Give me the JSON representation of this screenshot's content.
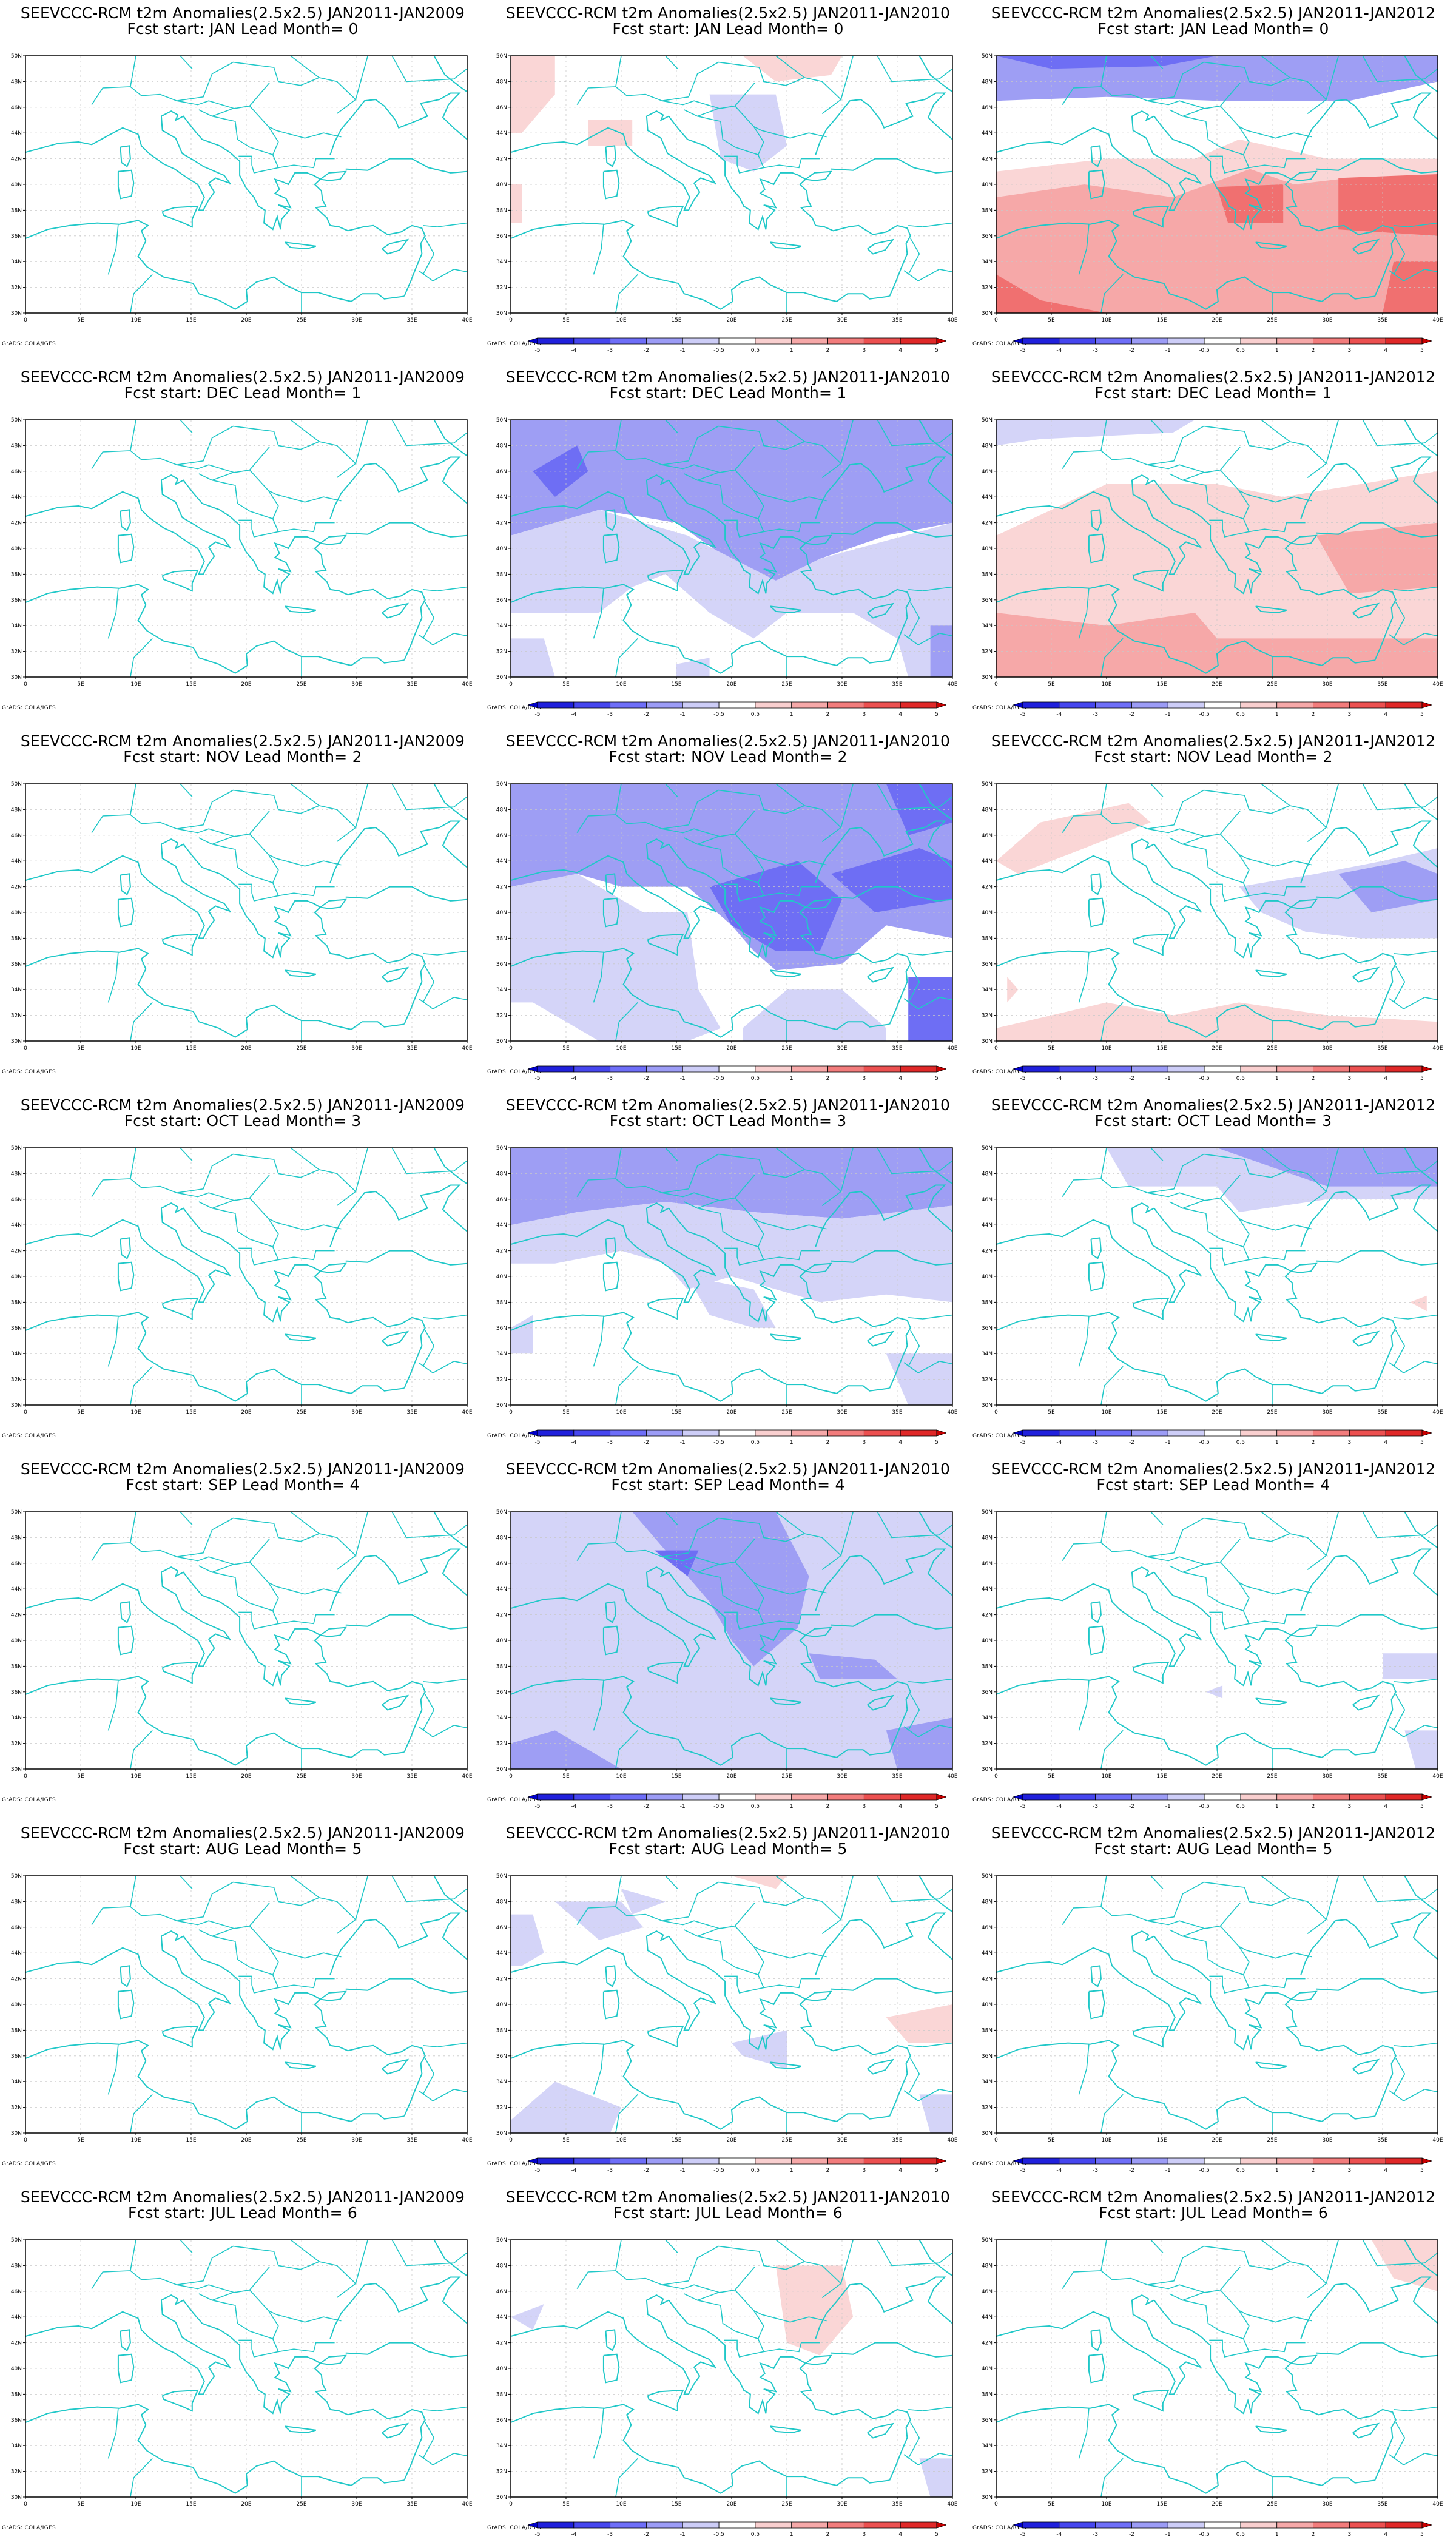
{
  "footer": "GrADS: COLA/IGES",
  "title_prefix": "SEEVCCC-RCM t2m Anomalies(2.5x2.5)",
  "row_titles": [
    {
      "fcst_start": "JAN",
      "lead_month": 0
    },
    {
      "fcst_start": "DEC",
      "lead_month": 1
    },
    {
      "fcst_start": "NOV",
      "lead_month": 2
    },
    {
      "fcst_start": "OCT",
      "lead_month": 3
    },
    {
      "fcst_start": "SEP",
      "lead_month": 4
    },
    {
      "fcst_start": "AUG",
      "lead_month": 5
    },
    {
      "fcst_start": "JUL",
      "lead_month": 6
    }
  ],
  "column_periods": [
    "JAN2011-JAN2009",
    "JAN2011-JAN2010",
    "JAN2011-JAN2012"
  ],
  "panels": [
    [
      {
        "title1": "SEEVCCC-RCM t2m Anomalies(2.5x2.5) JAN2011-JAN2009",
        "title2": "Fcst start: JAN  Lead Month= 0",
        "colorbar": false
      },
      {
        "title1": "SEEVCCC-RCM t2m Anomalies(2.5x2.5) JAN2011-JAN2010",
        "title2": "Fcst start: JAN  Lead Month= 0",
        "colorbar": true
      },
      {
        "title1": "SEEVCCC-RCM t2m Anomalies(2.5x2.5) JAN2011-JAN2012",
        "title2": "Fcst start: JAN  Lead Month= 0",
        "colorbar": true
      }
    ],
    [
      {
        "title1": "SEEVCCC-RCM t2m Anomalies(2.5x2.5) JAN2011-JAN2009",
        "title2": "Fcst start: DEC  Lead Month= 1",
        "colorbar": false
      },
      {
        "title1": "SEEVCCC-RCM t2m Anomalies(2.5x2.5) JAN2011-JAN2010",
        "title2": "Fcst start: DEC  Lead Month= 1",
        "colorbar": true
      },
      {
        "title1": "SEEVCCC-RCM t2m Anomalies(2.5x2.5) JAN2011-JAN2012",
        "title2": "Fcst start: DEC  Lead Month= 1",
        "colorbar": true
      }
    ],
    [
      {
        "title1": "SEEVCCC-RCM t2m Anomalies(2.5x2.5) JAN2011-JAN2009",
        "title2": "Fcst start: NOV  Lead Month= 2",
        "colorbar": false
      },
      {
        "title1": "SEEVCCC-RCM t2m Anomalies(2.5x2.5) JAN2011-JAN2010",
        "title2": "Fcst start: NOV  Lead Month= 2",
        "colorbar": true
      },
      {
        "title1": "SEEVCCC-RCM t2m Anomalies(2.5x2.5) JAN2011-JAN2012",
        "title2": "Fcst start: NOV  Lead Month= 2",
        "colorbar": true
      }
    ],
    [
      {
        "title1": "SEEVCCC-RCM t2m Anomalies(2.5x2.5) JAN2011-JAN2009",
        "title2": "Fcst start: OCT  Lead Month= 3",
        "colorbar": false
      },
      {
        "title1": "SEEVCCC-RCM t2m Anomalies(2.5x2.5) JAN2011-JAN2010",
        "title2": "Fcst start: OCT  Lead Month= 3",
        "colorbar": true
      },
      {
        "title1": "SEEVCCC-RCM t2m Anomalies(2.5x2.5) JAN2011-JAN2012",
        "title2": "Fcst start: OCT  Lead Month= 3",
        "colorbar": true
      }
    ],
    [
      {
        "title1": "SEEVCCC-RCM t2m Anomalies(2.5x2.5) JAN2011-JAN2009",
        "title2": "Fcst start: SEP  Lead Month= 4",
        "colorbar": false
      },
      {
        "title1": "SEEVCCC-RCM t2m Anomalies(2.5x2.5) JAN2011-JAN2010",
        "title2": "Fcst start: SEP  Lead Month= 4",
        "colorbar": true
      },
      {
        "title1": "SEEVCCC-RCM t2m Anomalies(2.5x2.5) JAN2011-JAN2012",
        "title2": "Fcst start: SEP  Lead Month= 4",
        "colorbar": true
      }
    ],
    [
      {
        "title1": "SEEVCCC-RCM t2m Anomalies(2.5x2.5) JAN2011-JAN2009",
        "title2": "Fcst start: AUG  Lead Month= 5",
        "colorbar": false
      },
      {
        "title1": "SEEVCCC-RCM t2m Anomalies(2.5x2.5) JAN2011-JAN2010",
        "title2": "Fcst start: AUG  Lead Month= 5",
        "colorbar": true
      },
      {
        "title1": "SEEVCCC-RCM t2m Anomalies(2.5x2.5) JAN2011-JAN2012",
        "title2": "Fcst start: AUG  Lead Month= 5",
        "colorbar": true
      }
    ],
    [
      {
        "title1": "SEEVCCC-RCM t2m Anomalies(2.5x2.5) JAN2011-JAN2009",
        "title2": "Fcst start: JUL  Lead Month= 6",
        "colorbar": false
      },
      {
        "title1": "SEEVCCC-RCM t2m Anomalies(2.5x2.5) JAN2011-JAN2010",
        "title2": "Fcst start: JUL  Lead Month= 6",
        "colorbar": true
      },
      {
        "title1": "SEEVCCC-RCM t2m Anomalies(2.5x2.5) JAN2011-JAN2012",
        "title2": "Fcst start: JUL  Lead Month= 6",
        "colorbar": true
      }
    ]
  ],
  "axes": {
    "lon_ticks": [
      "0",
      "5E",
      "10E",
      "15E",
      "20E",
      "25E",
      "30E",
      "35E",
      "40E"
    ],
    "lat_ticks": [
      "30N",
      "32N",
      "34N",
      "36N",
      "38N",
      "40N",
      "42N",
      "44N",
      "46N",
      "48N",
      "50N"
    ],
    "lon_range": [
      0,
      40
    ],
    "lat_range": [
      30,
      50
    ]
  },
  "colorbar": {
    "labels": [
      "-5",
      "-4",
      "-3",
      "-2",
      "-1",
      "-0.5",
      "0.5",
      "1",
      "2",
      "3",
      "4",
      "5"
    ],
    "colors": [
      "#0000c8",
      "#2020dc",
      "#4646ef",
      "#6e6ef8",
      "#9c9cf6",
      "#cdcdf7",
      "#ffffff",
      "#f9cfcf",
      "#f6a8a8",
      "#f27c7c",
      "#ec5050",
      "#e02828",
      "#c80000"
    ]
  },
  "colors": {
    "coast": "#20c8c8",
    "grid": "#c8c8c8",
    "cool_1": "#d4d4f8",
    "cool_2": "#9e9ef4",
    "cool_3": "#6e6ef4",
    "warm_1": "#fad6d6",
    "warm_2": "#f6a8a8",
    "warm_3": "#f07070"
  }
}
